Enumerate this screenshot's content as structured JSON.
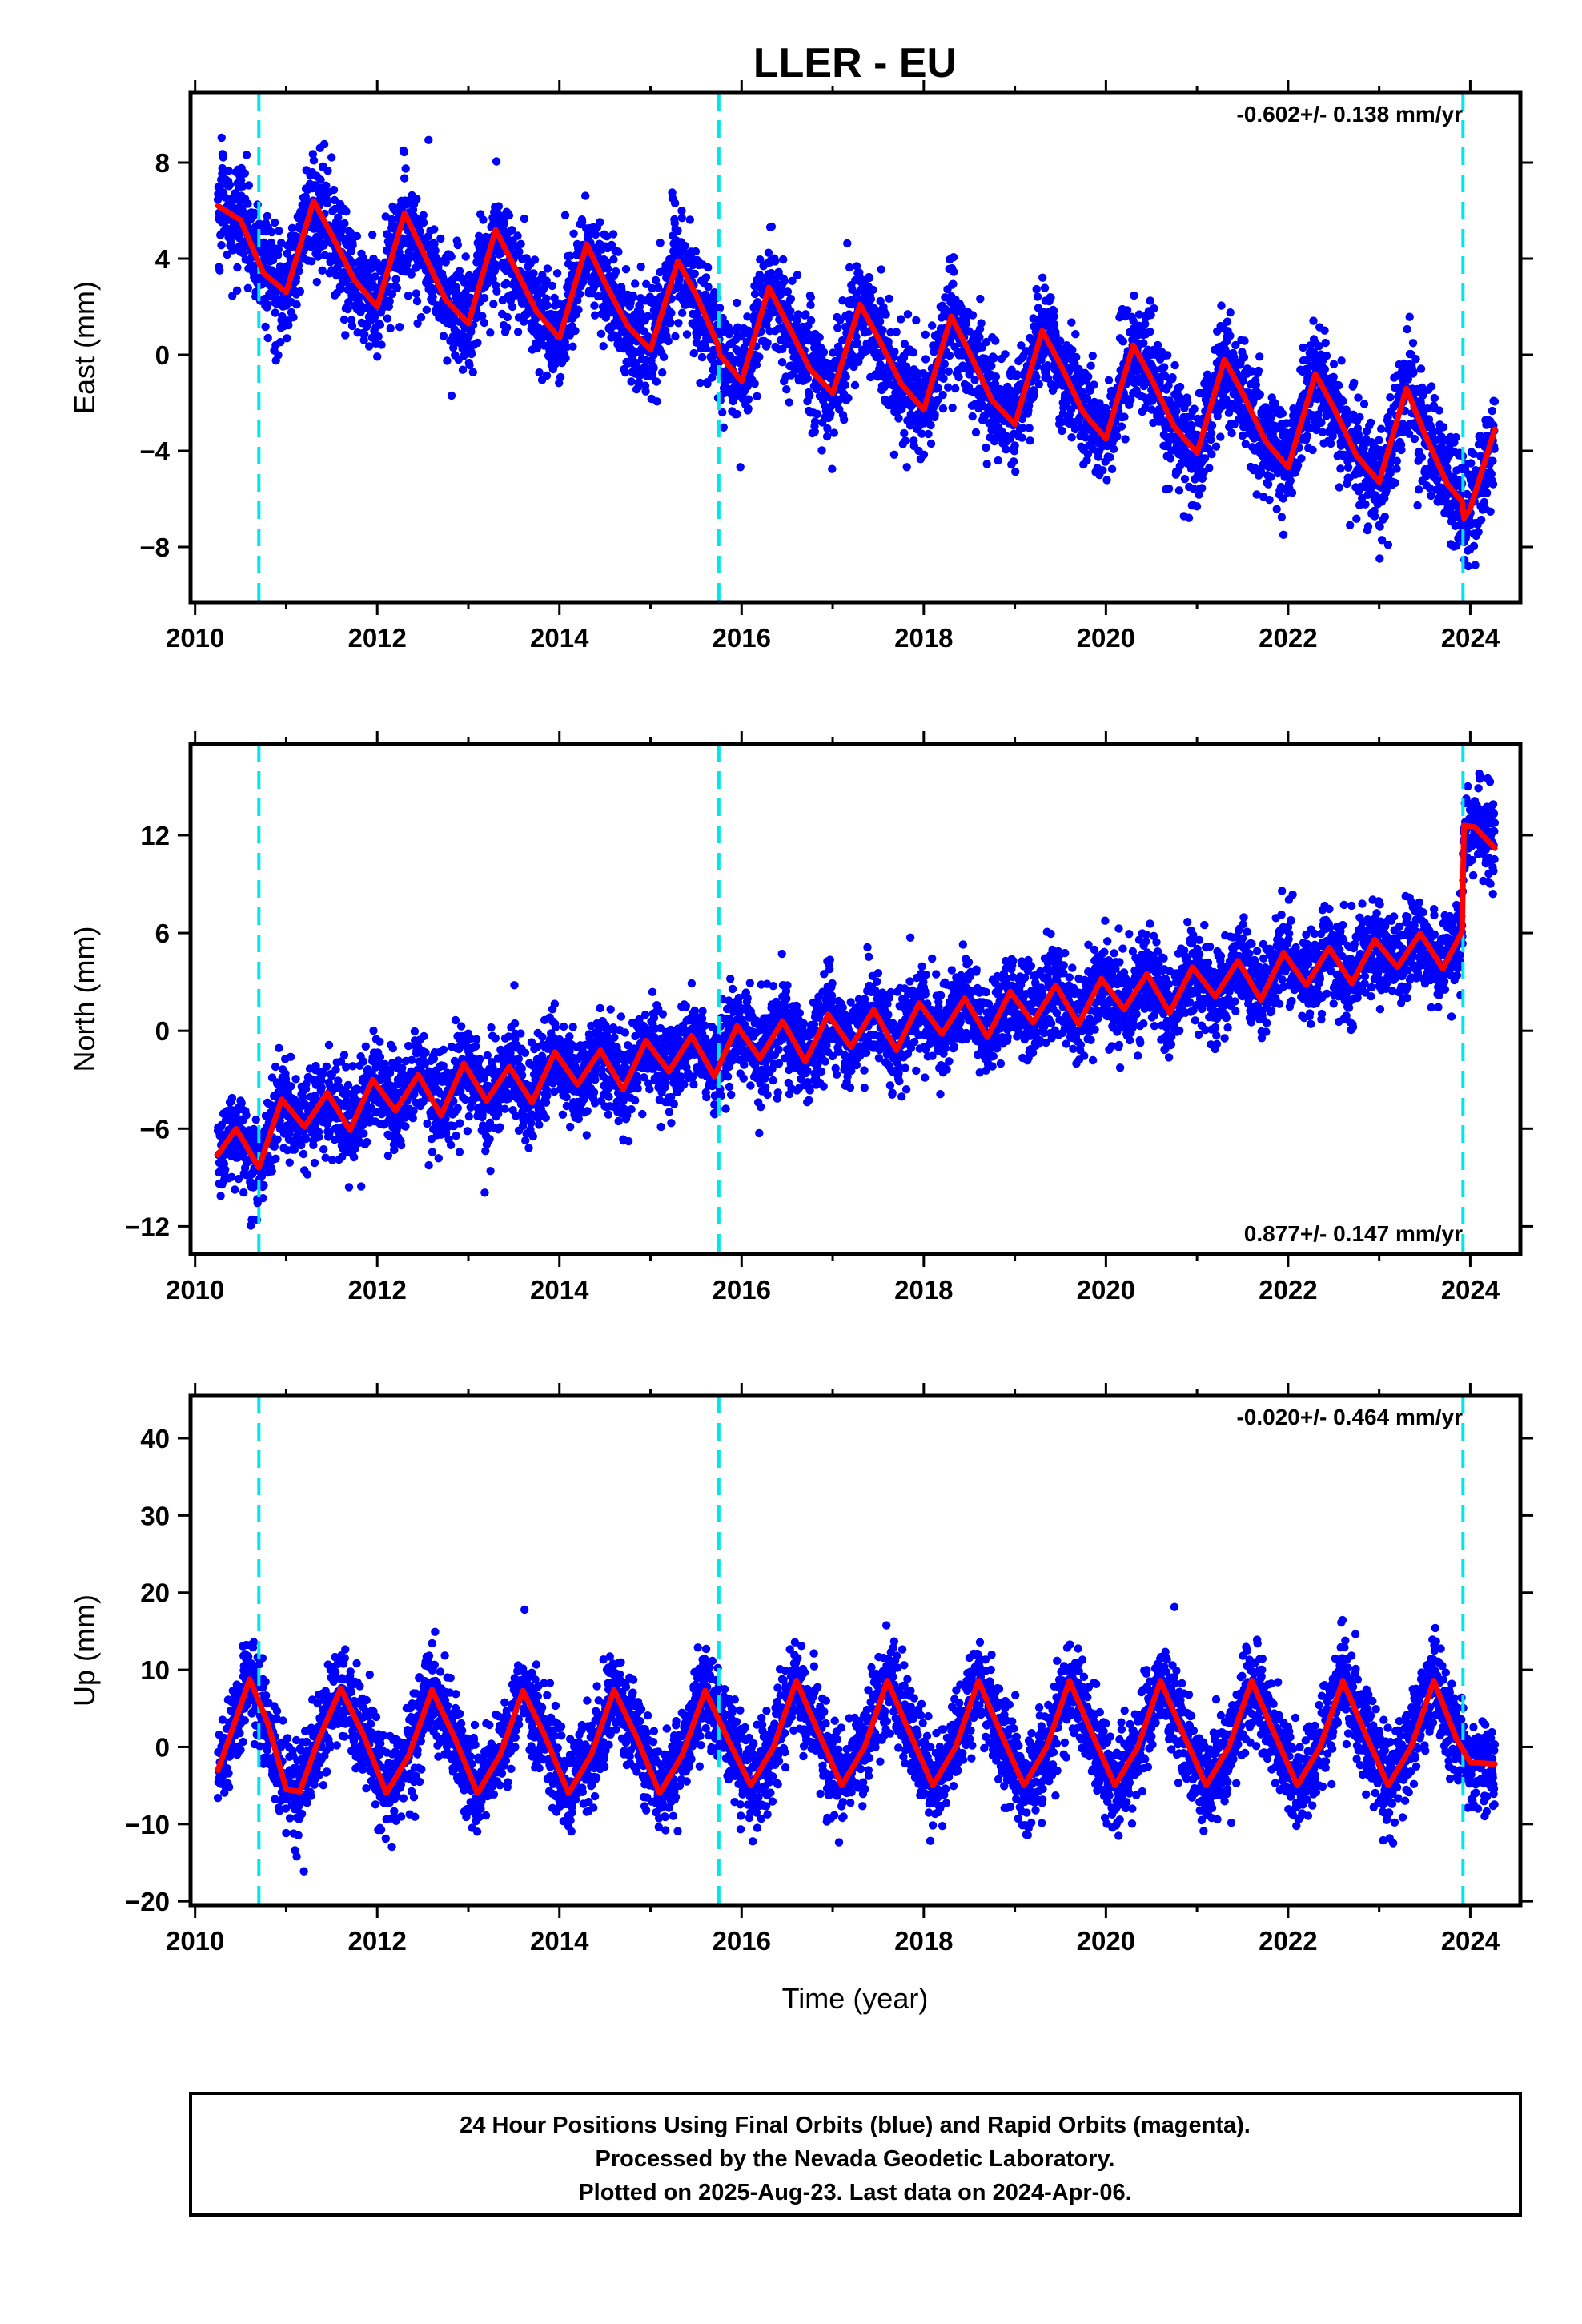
{
  "title": "LLER - EU",
  "xlabel": "Time (year)",
  "caption": {
    "line1": "24 Hour Positions Using Final Orbits (blue) and Rapid Orbits (magenta).",
    "line2": "Processed by the Nevada Geodetic Laboratory.",
    "line3": "Plotted on 2025-Aug-23. Last data on 2024-Apr-06."
  },
  "colors": {
    "points": "#0000ff",
    "model": "#ff0000",
    "steps": "#00e5ee",
    "frame": "#000000"
  },
  "chart_data": [
    {
      "type": "scatter",
      "ylabel": "East (mm)",
      "rate": "-0.602+/- 0.138 mm/yr",
      "rate_position": "top-right",
      "xlim": [
        2009.95,
        2024.55
      ],
      "ylim": [
        -10.3,
        10.9
      ],
      "xticks": [
        2010,
        2012,
        2014,
        2016,
        2018,
        2020,
        2022,
        2024
      ],
      "xtick_labels": [
        "2010",
        "2012",
        "2014",
        "2016",
        "2018",
        "2020",
        "2022",
        "2024"
      ],
      "yticks": [
        -8,
        -4,
        0,
        4,
        8
      ],
      "ytick_labels": [
        "−8",
        "−4",
        "0",
        "4",
        "8"
      ],
      "steps": [
        2010.7,
        2015.75,
        2023.92
      ],
      "model": {
        "x": [
          2010.25,
          2010.5,
          2010.75,
          2011.0,
          2011.3,
          2011.5,
          2011.75,
          2012.0,
          2012.3,
          2012.5,
          2012.75,
          2013.0,
          2013.3,
          2013.5,
          2013.75,
          2014.0,
          2014.3,
          2014.5,
          2014.75,
          2015.0,
          2015.3,
          2015.5,
          2015.74,
          2015.76,
          2016.0,
          2016.3,
          2016.5,
          2016.75,
          2017.0,
          2017.3,
          2017.5,
          2017.75,
          2018.0,
          2018.3,
          2018.5,
          2018.75,
          2019.0,
          2019.3,
          2019.5,
          2019.75,
          2020.0,
          2020.3,
          2020.5,
          2020.75,
          2021.0,
          2021.3,
          2021.5,
          2021.75,
          2022.0,
          2022.3,
          2022.5,
          2022.75,
          2023.0,
          2023.3,
          2023.5,
          2023.75,
          2023.91,
          2023.93,
          2024.0,
          2024.27
        ],
        "y": [
          6.2,
          5.6,
          3.4,
          2.6,
          6.4,
          5.0,
          3.1,
          2.0,
          5.9,
          4.3,
          2.3,
          1.3,
          5.2,
          3.7,
          1.8,
          0.7,
          4.6,
          3.0,
          1.2,
          0.2,
          3.9,
          2.5,
          0.4,
          0.0,
          -1.1,
          2.8,
          1.3,
          -0.6,
          -1.6,
          2.1,
          0.7,
          -1.2,
          -2.3,
          1.6,
          0.1,
          -1.9,
          -2.9,
          1.0,
          -0.4,
          -2.4,
          -3.5,
          0.4,
          -1.0,
          -3.0,
          -4.1,
          -0.2,
          -1.6,
          -3.6,
          -4.7,
          -0.8,
          -2.2,
          -4.2,
          -5.3,
          -1.4,
          -3.3,
          -5.4,
          -6.1,
          -6.8,
          -6.4,
          -3.1
        ]
      },
      "points": {
        "trend_mm_per_yr": -0.602,
        "start": 6.6,
        "annual_amplitude": 2.4,
        "scatter": 1.1
      }
    },
    {
      "type": "scatter",
      "ylabel": "North (mm)",
      "rate": "0.877+/- 0.147 mm/yr",
      "rate_position": "bottom-right",
      "xlim": [
        2009.95,
        2024.55
      ],
      "ylim": [
        -13.7,
        17.6
      ],
      "xticks": [
        2010,
        2012,
        2014,
        2016,
        2018,
        2020,
        2022,
        2024
      ],
      "xtick_labels": [
        "2010",
        "2012",
        "2014",
        "2016",
        "2018",
        "2020",
        "2022",
        "2024"
      ],
      "yticks": [
        -12,
        -6,
        0,
        6,
        12
      ],
      "ytick_labels": [
        "−12",
        "−6",
        "0",
        "6",
        "12"
      ],
      "steps": [
        2010.7,
        2015.75,
        2023.92
      ],
      "model": {
        "x": [
          2010.25,
          2010.45,
          2010.7,
          2010.95,
          2011.2,
          2011.45,
          2011.7,
          2011.95,
          2012.2,
          2012.45,
          2012.7,
          2012.95,
          2013.2,
          2013.45,
          2013.7,
          2013.95,
          2014.2,
          2014.45,
          2014.7,
          2014.95,
          2015.2,
          2015.45,
          2015.7,
          2015.95,
          2016.2,
          2016.45,
          2016.7,
          2016.95,
          2017.2,
          2017.45,
          2017.7,
          2017.95,
          2018.2,
          2018.45,
          2018.7,
          2018.95,
          2019.2,
          2019.45,
          2019.7,
          2019.95,
          2020.2,
          2020.45,
          2020.7,
          2020.95,
          2021.2,
          2021.45,
          2021.7,
          2021.95,
          2022.2,
          2022.45,
          2022.7,
          2022.95,
          2023.2,
          2023.45,
          2023.7,
          2023.91,
          2023.93,
          2024.05,
          2024.27
        ],
        "y": [
          -7.6,
          -6.0,
          -8.4,
          -4.2,
          -5.9,
          -3.8,
          -6.1,
          -3.0,
          -4.9,
          -2.7,
          -5.2,
          -2.0,
          -4.3,
          -2.2,
          -4.4,
          -1.3,
          -3.3,
          -1.2,
          -3.6,
          -0.6,
          -2.5,
          -0.3,
          -2.8,
          0.3,
          -1.7,
          0.6,
          -1.9,
          1.0,
          -1.0,
          1.3,
          -1.2,
          1.7,
          -0.2,
          2.0,
          -0.4,
          2.4,
          0.5,
          2.8,
          0.4,
          3.2,
          1.3,
          3.5,
          1.1,
          3.9,
          2.1,
          4.3,
          1.9,
          4.8,
          2.8,
          5.1,
          2.9,
          5.6,
          3.9,
          6.0,
          3.8,
          6.1,
          12.6,
          12.5,
          11.2
        ]
      },
      "points": {
        "trend_mm_per_yr": 0.877,
        "start": -7.3,
        "annual_amplitude": 1.2,
        "scatter": 1.4
      }
    },
    {
      "type": "scatter",
      "ylabel": "Up (mm)",
      "rate": "-0.020+/- 0.464 mm/yr",
      "rate_position": "top-right",
      "xlim": [
        2009.95,
        2024.55
      ],
      "ylim": [
        -20.5,
        45.5
      ],
      "xticks": [
        2010,
        2012,
        2014,
        2016,
        2018,
        2020,
        2022,
        2024
      ],
      "xtick_labels": [
        "2010",
        "2012",
        "2014",
        "2016",
        "2018",
        "2020",
        "2022",
        "2024"
      ],
      "yticks": [
        -20,
        -10,
        0,
        10,
        20,
        30,
        40
      ],
      "ytick_labels": [
        "−20",
        "−10",
        "0",
        "10",
        "20",
        "30",
        "40"
      ],
      "steps": [
        2010.7,
        2015.75,
        2023.92
      ],
      "model": {
        "x": [
          2010.25,
          2010.4,
          2010.6,
          2010.8,
          2011.0,
          2011.15,
          2011.35,
          2011.6,
          2011.85,
          2012.1,
          2012.35,
          2012.6,
          2012.85,
          2013.1,
          2013.35,
          2013.6,
          2013.85,
          2014.1,
          2014.35,
          2014.6,
          2014.85,
          2015.1,
          2015.35,
          2015.6,
          2015.85,
          2016.1,
          2016.35,
          2016.6,
          2016.85,
          2017.1,
          2017.35,
          2017.6,
          2017.85,
          2018.1,
          2018.35,
          2018.6,
          2018.85,
          2019.1,
          2019.35,
          2019.6,
          2019.85,
          2020.1,
          2020.35,
          2020.6,
          2020.85,
          2021.1,
          2021.35,
          2021.6,
          2021.85,
          2022.1,
          2022.35,
          2022.6,
          2022.85,
          2023.1,
          2023.35,
          2023.6,
          2023.85,
          2024.0,
          2024.27
        ],
        "y": [
          -3.0,
          2.0,
          8.8,
          3.0,
          -5.5,
          -5.8,
          0.8,
          7.6,
          1.5,
          -6.0,
          -1.0,
          7.4,
          1.2,
          -6.0,
          -1.0,
          7.3,
          1.2,
          -6.0,
          -1.0,
          7.4,
          1.2,
          -6.0,
          -1.0,
          7.3,
          1.0,
          -5.0,
          0.0,
          8.6,
          1.7,
          -5.0,
          0.0,
          8.6,
          1.7,
          -5.0,
          0.0,
          8.6,
          1.7,
          -5.0,
          0.0,
          8.6,
          1.7,
          -5.0,
          0.0,
          8.6,
          1.7,
          -5.0,
          0.0,
          8.6,
          1.7,
          -5.0,
          0.0,
          8.6,
          1.7,
          -5.0,
          0.0,
          8.6,
          1.0,
          -2.0,
          -2.2
        ]
      },
      "points": {
        "trend_mm_per_yr": -0.02,
        "start": 0.5,
        "annual_amplitude": 7.0,
        "scatter": 3.0
      }
    }
  ]
}
